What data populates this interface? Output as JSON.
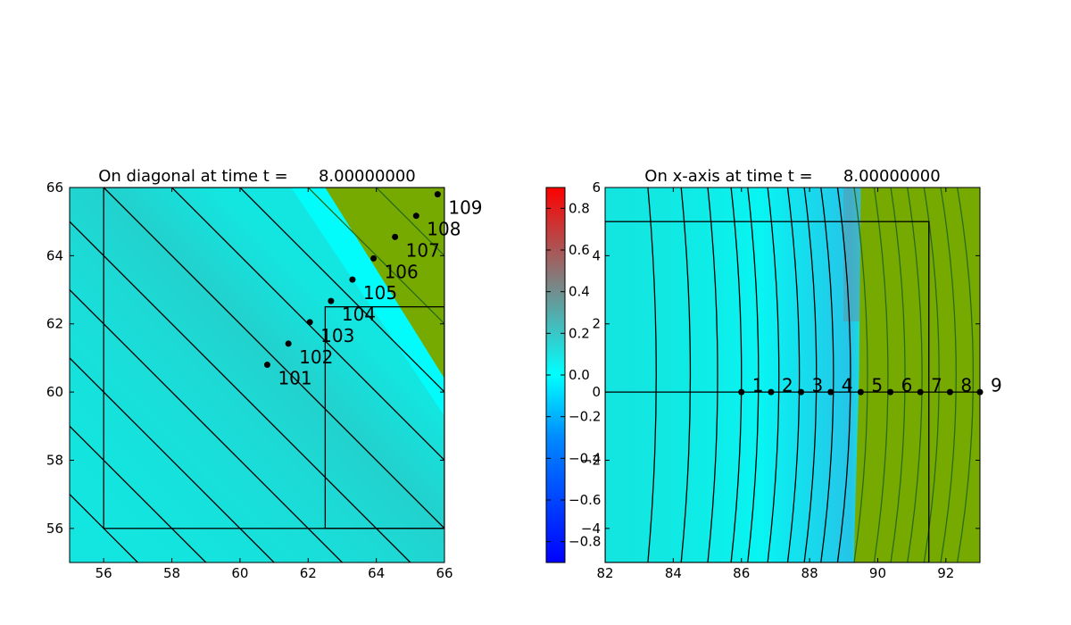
{
  "figure": {
    "background": "#ffffff",
    "colormap": {
      "low": "#0000ff",
      "mid": "#00ffff",
      "center": "#808080",
      "high": "#ff0000"
    },
    "sea_color": "#13e6e0",
    "land_color": "#77aa00"
  },
  "chart_data": [
    {
      "type": "heatmap",
      "title": "On diagonal at time t =      8.00000000",
      "xlim": [
        55,
        66
      ],
      "ylim": [
        55,
        66
      ],
      "x_ticks": [
        "56",
        "58",
        "60",
        "62",
        "64",
        "66"
      ],
      "y_ticks": [
        "56",
        "58",
        "60",
        "62",
        "64",
        "66"
      ],
      "grid": false,
      "shoreline": [
        [
          62.5,
          66
        ],
        [
          66,
          60.4
        ]
      ],
      "patch_boxes": [
        {
          "x": [
            56,
            66
          ],
          "y": [
            56,
            66
          ]
        },
        {
          "x": [
            62.5,
            66
          ],
          "y": [
            56,
            62.5
          ]
        }
      ],
      "contour_offsets": [
        -12,
        -10,
        -8,
        -6,
        -4,
        -2,
        0,
        2,
        4,
        6,
        8,
        10,
        12,
        14
      ],
      "gauges": [
        {
          "label": "101",
          "x": 60.8,
          "y": 60.8
        },
        {
          "label": "102",
          "x": 61.42,
          "y": 61.42
        },
        {
          "label": "103",
          "x": 62.05,
          "y": 62.05
        },
        {
          "label": "104",
          "x": 62.67,
          "y": 62.67
        },
        {
          "label": "105",
          "x": 63.3,
          "y": 63.3
        },
        {
          "label": "106",
          "x": 63.92,
          "y": 63.92
        },
        {
          "label": "107",
          "x": 64.55,
          "y": 64.55
        },
        {
          "label": "108",
          "x": 65.17,
          "y": 65.17
        },
        {
          "label": "109",
          "x": 65.8,
          "y": 65.8
        }
      ]
    },
    {
      "type": "heatmap",
      "title": "On x-axis at time t =      8.00000000",
      "xlim": [
        82,
        93
      ],
      "ylim": [
        -5,
        6
      ],
      "x_ticks": [
        "82",
        "84",
        "86",
        "88",
        "90",
        "92"
      ],
      "y_ticks": [
        "−4",
        "−2",
        "0",
        "2",
        "4",
        "6"
      ],
      "grid": false,
      "shoreline_x": 89.4,
      "patch_box": {
        "x": [
          82,
          91.5
        ],
        "y": [
          -5,
          5
        ]
      },
      "line_y": 0,
      "contour_x": [
        83.5,
        84.5,
        85.3,
        86,
        86.5,
        87.1,
        87.7,
        88.2,
        88.7,
        89.2,
        89.7,
        90.3,
        90.8,
        91.3,
        91.8,
        92.3,
        92.8
      ],
      "gauges": [
        {
          "label": "1",
          "x": 86.0,
          "y": 0
        },
        {
          "label": "2",
          "x": 86.87,
          "y": 0
        },
        {
          "label": "3",
          "x": 87.75,
          "y": 0
        },
        {
          "label": "4",
          "x": 88.62,
          "y": 0
        },
        {
          "label": "5",
          "x": 89.5,
          "y": 0
        },
        {
          "label": "6",
          "x": 90.37,
          "y": 0
        },
        {
          "label": "7",
          "x": 91.25,
          "y": 0
        },
        {
          "label": "8",
          "x": 92.12,
          "y": 0
        },
        {
          "label": "9",
          "x": 93.0,
          "y": 0
        }
      ]
    }
  ],
  "colorbar": {
    "ticks": [
      "−0.8",
      "−0.6",
      "−0.4",
      "−0.2",
      "0.0",
      "0.2",
      "0.4",
      "0.6",
      "0.8"
    ],
    "range": [
      -0.9,
      0.9
    ]
  }
}
